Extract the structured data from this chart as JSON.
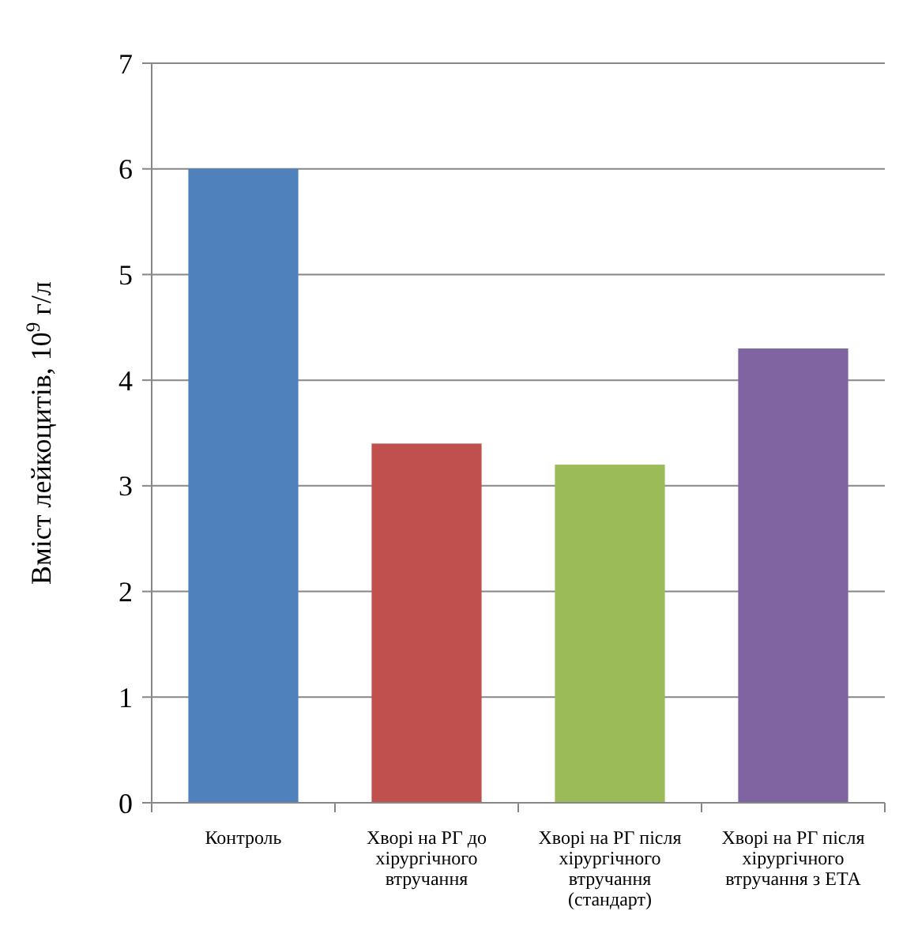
{
  "chart_data": {
    "type": "bar",
    "ylabel": "Вміст лейкоцитів, 10$^{9}$ г/л",
    "categories": [
      "Контроль",
      "Хворі на РГ до хірургічного втручання",
      "Хворі на РГ після хірургічного втручання (стандарт)",
      "Хворі на РГ після хірургічного втручання з ЕТА"
    ],
    "values": [
      6,
      3.4,
      3.2,
      4.3
    ],
    "colors": [
      "#4f81bd",
      "#c0504d",
      "#9bbb59",
      "#8064a2"
    ],
    "ylim": [
      0,
      7
    ],
    "yticks": [
      0,
      1,
      2,
      3,
      4,
      5,
      6,
      7
    ],
    "grid": "y"
  }
}
